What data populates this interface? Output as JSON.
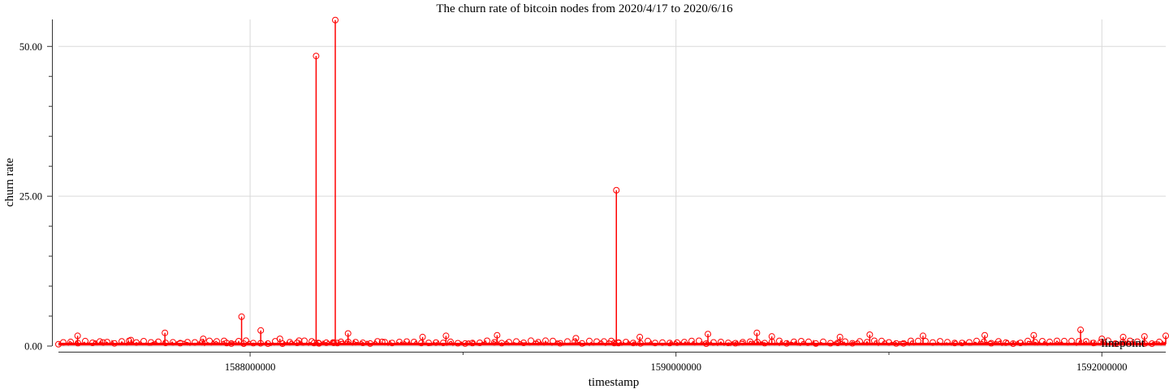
{
  "chart_data": {
    "type": "line",
    "title": "The churn rate of bitcoin nodes from 2020/4/17 to 2020/6/16",
    "xlabel": "timestamp",
    "ylabel": "churn rate",
    "xlim": [
      1587100000,
      1592300000
    ],
    "ylim": [
      0,
      54.5
    ],
    "x_ticks": [
      1588000000,
      1590000000,
      1592000000
    ],
    "x_tick_labels": [
      "1588000000",
      "1590000000",
      "1592000000"
    ],
    "x_minor_ticks": [
      1589000000,
      1591000000
    ],
    "y_ticks": [
      0,
      25,
      50
    ],
    "y_tick_labels": [
      "0.00",
      "25.00",
      "50.00"
    ],
    "y_minor_ticks": [
      5,
      10,
      15,
      20,
      30,
      35,
      40,
      45
    ],
    "grid": true,
    "legend": {
      "position": "bottom-right",
      "entries": [
        "linepoint"
      ]
    },
    "series": [
      {
        "name": "linepoint",
        "color": "#ff0000",
        "baseline_range": [
          0.1,
          0.55
        ],
        "x": [
          1587100000,
          1587190000,
          1587310000,
          1587440000,
          1587600000,
          1587780000,
          1587890000,
          1587960000,
          1587970000,
          1588050000,
          1588140000,
          1588230000,
          1588300000,
          1588310000,
          1588320000,
          1588390000,
          1588400000,
          1588410000,
          1588460000,
          1588620000,
          1588810000,
          1588920000,
          1589160000,
          1589530000,
          1589710000,
          1589720000,
          1589730000,
          1589830000,
          1590150000,
          1590380000,
          1590450000,
          1590770000,
          1590910000,
          1591160000,
          1591450000,
          1591680000,
          1591900000,
          1592000000,
          1592100000,
          1592200000,
          1592300000
        ],
        "values": [
          0.3,
          1.7,
          0.6,
          1.0,
          2.2,
          1.2,
          0.5,
          4.9,
          0.4,
          2.6,
          1.2,
          0.9,
          0.5,
          48.4,
          0.5,
          0.6,
          54.4,
          0.5,
          2.1,
          0.7,
          1.5,
          1.7,
          1.8,
          1.3,
          0.5,
          26.0,
          0.5,
          1.5,
          2.0,
          2.2,
          1.6,
          1.5,
          1.9,
          1.7,
          1.8,
          1.8,
          2.7,
          1.2,
          1.5,
          1.6,
          1.7
        ]
      }
    ]
  }
}
